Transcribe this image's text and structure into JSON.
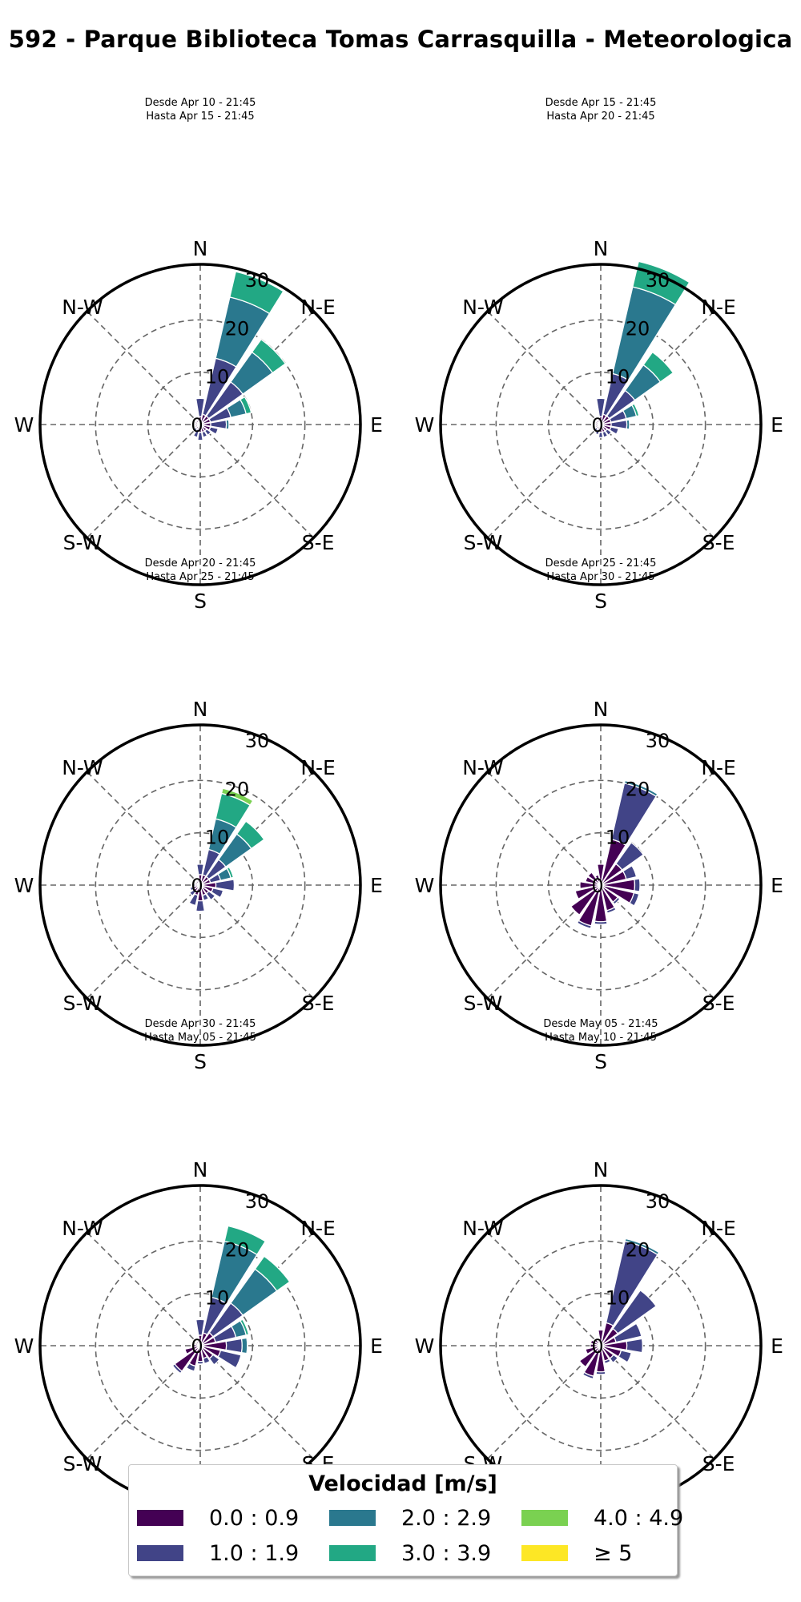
{
  "title": "592 - Parque Biblioteca Tomas Carrasquilla - Meteorologica",
  "chart_data": [
    {
      "type": "windrose",
      "subtitle": [
        "Desde Apr 10 - 21:45",
        "Hasta Apr 15 - 21:45"
      ],
      "directions": [
        "N",
        "NNE",
        "NE",
        "ENE",
        "E",
        "ESE",
        "SE",
        "SSE",
        "S",
        "SSW",
        "SW",
        "WSW",
        "W",
        "WNW",
        "NW",
        "NNW"
      ],
      "series": [
        {
          "name": "0.0 : 0.9",
          "values": [
            1.5,
            2,
            2,
            2,
            2,
            2,
            1.5,
            1.5,
            1.5,
            1,
            1,
            1,
            1,
            1,
            1,
            1
          ]
        },
        {
          "name": "1.0 : 1.9",
          "values": [
            3.5,
            11,
            8,
            4,
            3,
            1.5,
            1,
            1,
            1.5,
            1.5,
            0.5,
            0,
            0,
            0,
            0,
            0
          ]
        },
        {
          "name": "2.0 : 2.9",
          "values": [
            0,
            12,
            7,
            3,
            0.5,
            0,
            0,
            0,
            0,
            0,
            0,
            0,
            0,
            0,
            0,
            0
          ]
        },
        {
          "name": "3.0 : 3.9",
          "values": [
            0,
            5,
            3,
            1,
            0,
            0,
            0,
            0,
            0,
            0,
            0,
            0,
            0,
            0,
            0,
            0
          ]
        },
        {
          "name": "4.0 : 4.9",
          "values": [
            0,
            0,
            0,
            0,
            0,
            0,
            0,
            0,
            0,
            0,
            0,
            0,
            0,
            0,
            0,
            0
          ]
        },
        {
          "name": "≥ 5",
          "values": [
            0,
            0,
            0,
            0,
            0,
            0,
            0,
            0,
            0,
            0,
            0,
            0,
            0,
            0,
            0,
            0
          ]
        }
      ]
    },
    {
      "type": "windrose",
      "subtitle": [
        "Desde Apr 15 - 21:45",
        "Hasta Apr 20 - 21:45"
      ],
      "directions": [
        "N",
        "NNE",
        "NE",
        "ENE",
        "E",
        "ESE",
        "SE",
        "SSE",
        "S",
        "SSW",
        "SW",
        "WSW",
        "W",
        "WNW",
        "NW",
        "NNW"
      ],
      "series": [
        {
          "name": "0.0 : 0.9",
          "values": [
            1.5,
            2,
            2,
            2,
            2,
            2,
            1.5,
            1.5,
            1.5,
            1,
            1,
            1,
            1,
            1,
            1,
            1
          ]
        },
        {
          "name": "1.0 : 1.9",
          "values": [
            3.5,
            8,
            6,
            3,
            3,
            1.5,
            1,
            1,
            1,
            1,
            0.5,
            0,
            0,
            0,
            0,
            0
          ]
        },
        {
          "name": "2.0 : 2.9",
          "values": [
            0,
            17,
            6,
            2,
            0.5,
            0,
            0,
            0,
            0,
            0,
            0,
            0,
            0,
            0,
            0,
            0
          ]
        },
        {
          "name": "3.0 : 3.9",
          "values": [
            0,
            5,
            3,
            0.5,
            0,
            0,
            0,
            0,
            0,
            0,
            0,
            0,
            0,
            0,
            0,
            0
          ]
        },
        {
          "name": "4.0 : 4.9",
          "values": [
            0,
            0,
            0,
            0,
            0,
            0,
            0,
            0,
            0,
            0,
            0,
            0,
            0,
            0,
            0,
            0
          ]
        },
        {
          "name": "≥ 5",
          "values": [
            0,
            0,
            0,
            0,
            0,
            0,
            0,
            0,
            0,
            0,
            0,
            0,
            0,
            0,
            0,
            0
          ]
        }
      ]
    },
    {
      "type": "windrose",
      "subtitle": [
        "Desde Apr 20 - 21:45",
        "Hasta Apr 25 - 21:45"
      ],
      "directions": [
        "N",
        "NNE",
        "NE",
        "ENE",
        "E",
        "ESE",
        "SE",
        "SSE",
        "S",
        "SSW",
        "SW",
        "WSW",
        "W",
        "WNW",
        "NW",
        "NNW"
      ],
      "series": [
        {
          "name": "0.0 : 0.9",
          "values": [
            2,
            2,
            2,
            2,
            3,
            2.5,
            2,
            2,
            3,
            2,
            1.5,
            1.5,
            1,
            1,
            1,
            1
          ]
        },
        {
          "name": "1.0 : 1.9",
          "values": [
            2,
            5,
            4,
            2,
            3.5,
            2,
            1.5,
            1,
            2,
            2,
            1,
            0.5,
            0.5,
            0,
            0,
            0
          ]
        },
        {
          "name": "2.0 : 2.9",
          "values": [
            0,
            6,
            6,
            2,
            0,
            0,
            0,
            0,
            0,
            0,
            0,
            0,
            0,
            0,
            0,
            0
          ]
        },
        {
          "name": "3.0 : 3.9",
          "values": [
            0,
            5,
            3,
            0.5,
            0,
            0,
            0,
            0,
            0,
            0,
            0,
            0,
            0,
            0,
            0,
            0
          ]
        },
        {
          "name": "4.0 : 4.9",
          "values": [
            0,
            1,
            0,
            0,
            0,
            0,
            0,
            0,
            0,
            0,
            0,
            0,
            0,
            0,
            0,
            0
          ]
        },
        {
          "name": "≥ 5",
          "values": [
            0,
            0,
            0,
            0,
            0,
            0,
            0,
            0,
            0,
            0,
            0,
            0,
            0,
            0,
            0,
            0
          ]
        }
      ]
    },
    {
      "type": "windrose",
      "subtitle": [
        "Desde Apr 25 - 21:45",
        "Hasta Apr 30 - 21:45"
      ],
      "directions": [
        "N",
        "NNE",
        "NE",
        "ENE",
        "E",
        "ESE",
        "SE",
        "SSE",
        "S",
        "SSW",
        "SW",
        "WSW",
        "W",
        "WNW",
        "NW",
        "NNW"
      ],
      "series": [
        {
          "name": "0.0 : 0.9",
          "values": [
            4,
            9,
            5,
            5,
            6.5,
            6.5,
            4,
            5,
            7,
            8,
            7,
            5,
            4,
            3,
            3,
            2
          ]
        },
        {
          "name": "1.0 : 1.9",
          "values": [
            0,
            11,
            5,
            2,
            1,
            1,
            0.5,
            0.5,
            0.5,
            0.5,
            0,
            0,
            0,
            0,
            0,
            0
          ]
        },
        {
          "name": "2.0 : 2.9",
          "values": [
            0,
            0.5,
            0,
            0,
            0,
            0,
            0,
            0,
            0,
            0,
            0,
            0,
            0,
            0,
            0,
            0
          ]
        },
        {
          "name": "3.0 : 3.9",
          "values": [
            0,
            0,
            0,
            0,
            0,
            0,
            0,
            0,
            0,
            0,
            0,
            0,
            0,
            0,
            0,
            0
          ]
        },
        {
          "name": "4.0 : 4.9",
          "values": [
            0,
            0,
            0,
            0,
            0,
            0,
            0,
            0,
            0,
            0,
            0,
            0,
            0,
            0,
            0,
            0
          ]
        },
        {
          "name": "≥ 5",
          "values": [
            0,
            0,
            0,
            0,
            0,
            0,
            0,
            0,
            0,
            0,
            0,
            0,
            0,
            0,
            0,
            0
          ]
        }
      ]
    },
    {
      "type": "windrose",
      "subtitle": [
        "Desde Apr 30 - 21:45",
        "Hasta May 05 - 21:45"
      ],
      "directions": [
        "N",
        "NNE",
        "NE",
        "ENE",
        "E",
        "ESE",
        "SE",
        "SSE",
        "S",
        "SSW",
        "SW",
        "WSW",
        "W",
        "WNW",
        "NW",
        "NNW"
      ],
      "series": [
        {
          "name": "0.0 : 0.9",
          "values": [
            2,
            2.5,
            3,
            3,
            5,
            4,
            3,
            2.5,
            3,
            4,
            6,
            3,
            1.5,
            1,
            1,
            1
          ]
        },
        {
          "name": "1.0 : 1.9",
          "values": [
            3,
            7,
            7,
            4,
            3,
            4,
            1.5,
            1,
            0.5,
            1,
            0.5,
            0,
            0,
            0,
            0,
            0
          ]
        },
        {
          "name": "2.0 : 2.9",
          "values": [
            0,
            11,
            8,
            2,
            1,
            0,
            0,
            0,
            0,
            0,
            0,
            0,
            0,
            0,
            0,
            0
          ]
        },
        {
          "name": "3.0 : 3.9",
          "values": [
            0,
            3,
            3,
            0.5,
            0,
            0,
            0,
            0,
            0,
            0,
            0,
            0,
            0,
            0,
            0,
            0
          ]
        },
        {
          "name": "4.0 : 4.9",
          "values": [
            0,
            0,
            0,
            0,
            0,
            0,
            0,
            0,
            0,
            0,
            0,
            0,
            0,
            0,
            0,
            0
          ]
        },
        {
          "name": "≥ 5",
          "values": [
            0,
            0,
            0,
            0,
            0,
            0,
            0,
            0,
            0,
            0,
            0,
            0,
            0,
            0,
            0,
            0
          ]
        }
      ]
    },
    {
      "type": "windrose",
      "subtitle": [
        "Desde May 05 - 21:45",
        "Hasta May 10 - 21:45"
      ],
      "directions": [
        "N",
        "NNE",
        "NE",
        "ENE",
        "E",
        "ESE",
        "SE",
        "SSE",
        "S",
        "SSW",
        "SW",
        "WSW",
        "W",
        "WNW",
        "NW",
        "NNW"
      ],
      "series": [
        {
          "name": "0.0 : 0.9",
          "values": [
            3,
            4.5,
            4,
            3,
            5,
            4,
            3,
            3,
            5,
            6,
            5,
            3,
            2,
            2,
            1.5,
            1
          ]
        },
        {
          "name": "1.0 : 1.9",
          "values": [
            0,
            16,
            9,
            5,
            3,
            2,
            1,
            0.5,
            0.5,
            0.5,
            0,
            0,
            0,
            0,
            0,
            0
          ]
        },
        {
          "name": "2.0 : 2.9",
          "values": [
            0,
            0.5,
            0,
            0,
            0,
            0,
            0,
            0,
            0,
            0,
            0,
            0,
            0,
            0,
            0,
            0
          ]
        },
        {
          "name": "3.0 : 3.9",
          "values": [
            0,
            0,
            0,
            0,
            0,
            0,
            0,
            0,
            0,
            0,
            0,
            0,
            0,
            0,
            0,
            0
          ]
        },
        {
          "name": "4.0 : 4.9",
          "values": [
            0,
            0,
            0,
            0,
            0,
            0,
            0,
            0,
            0,
            0,
            0,
            0,
            0,
            0,
            0,
            0
          ]
        },
        {
          "name": "≥ 5",
          "values": [
            0,
            0,
            0,
            0,
            0,
            0,
            0,
            0,
            0,
            0,
            0,
            0,
            0,
            0,
            0,
            0
          ]
        }
      ]
    }
  ],
  "axes": {
    "compass_labels": [
      "N",
      "N-E",
      "E",
      "S-E",
      "S",
      "S-W",
      "W",
      "N-W"
    ],
    "radial_ticks": [
      0,
      10,
      20,
      30
    ],
    "rlim": [
      0,
      30
    ],
    "grid": true
  },
  "legend": {
    "title": "Velocidad [m/s]",
    "placement": "bottom-center",
    "items": [
      {
        "label": "0.0 : 0.9",
        "color": "#440154"
      },
      {
        "label": "1.0 : 1.9",
        "color": "#414487"
      },
      {
        "label": "2.0 : 2.9",
        "color": "#2a788e"
      },
      {
        "label": "3.0 : 3.9",
        "color": "#22a884"
      },
      {
        "label": "4.0 : 4.9",
        "color": "#7ad151"
      },
      {
        "label": "≥  5",
        "color": "#fde725"
      }
    ]
  }
}
